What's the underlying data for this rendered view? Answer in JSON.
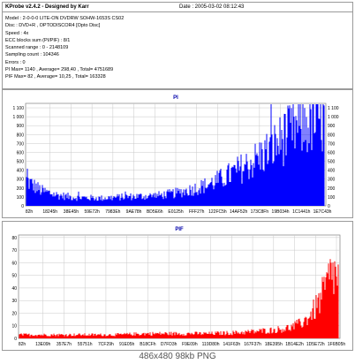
{
  "header": {
    "title": "KProbe v2.4.2 - Designed by Karr",
    "date": "Date : 2005-03-02 08:12:43",
    "info_lines": [
      "Model : 2-0-0-0 LITE-ON DVDRW SOHW-1653S CS02",
      "Disc : DVD+R , OPTODISCOR4 [Opto Disc]",
      "Speed : 4x",
      "ECC blocks sum (PI/PIF) : 8/1",
      "Scanned range : 0 - 2148109",
      "Sampling count : 104346",
      "Errors : 0",
      "PI Max= 1140 , Average= 298,40 , Total= 4751689",
      "PIF Max= 82 , Average= 10,25 , Total= 163328"
    ]
  },
  "caption": "486x480 98kb PNG",
  "colors": {
    "pi": "#0000ff",
    "pif": "#ff0000",
    "grid": "#c8c8c8",
    "frame": "#9a9a9a"
  },
  "chart_data": [
    {
      "type": "bar",
      "title": "PI",
      "ylim": [
        0,
        1150
      ],
      "yticks": [
        "1 100",
        "1 000",
        "900",
        "800",
        "700",
        "600",
        "500",
        "400",
        "300",
        "200",
        "100",
        "0"
      ],
      "ytick_values": [
        1100,
        1000,
        900,
        800,
        700,
        600,
        500,
        400,
        300,
        200,
        100,
        0
      ],
      "xtick_labels": [
        "82h",
        "18245h",
        "38E45h",
        "59E72h",
        "7983Eh",
        "9AE78h",
        "BD5E6h",
        "E0125h",
        "FFF27h",
        "122FC5h",
        "14AF52h",
        "173C8Fh",
        "19B034h",
        "1C1441h",
        "1E7C43h"
      ],
      "profile_x": [
        0,
        0.02,
        0.05,
        0.1,
        0.15,
        0.2,
        0.25,
        0.3,
        0.35,
        0.4,
        0.45,
        0.5,
        0.55,
        0.6,
        0.65,
        0.7,
        0.75,
        0.8,
        0.85,
        0.9,
        0.95,
        1.0
      ],
      "profile_y": [
        300,
        250,
        180,
        130,
        105,
        95,
        90,
        100,
        110,
        115,
        125,
        150,
        190,
        240,
        310,
        400,
        500,
        620,
        760,
        900,
        980,
        1000
      ],
      "max": 1140,
      "grid": true
    },
    {
      "type": "bar",
      "title": "PIF",
      "ylim": [
        0,
        82
      ],
      "yticks": [
        "80",
        "70",
        "60",
        "50",
        "40",
        "30",
        "20",
        "10",
        "0"
      ],
      "ytick_values": [
        80,
        70,
        60,
        50,
        40,
        30,
        20,
        10,
        0
      ],
      "xtick_labels": [
        "82h",
        "13E09h",
        "357E7h",
        "55751h",
        "7CF29h",
        "91E05h",
        "B18CFh",
        "D7FD3h",
        "F9E09h",
        "119D80h",
        "141F63h",
        "167F37h",
        "18E395h",
        "1B14E2h",
        "1D5E72h",
        "1F6B05h"
      ],
      "profile_x": [
        0,
        0.1,
        0.2,
        0.3,
        0.4,
        0.5,
        0.6,
        0.7,
        0.75,
        0.8,
        0.85,
        0.88,
        0.9,
        0.92,
        0.94,
        0.96,
        0.98,
        1.0
      ],
      "profile_y": [
        3,
        3,
        3,
        3,
        4,
        4,
        4,
        5,
        6,
        7,
        9,
        12,
        16,
        22,
        30,
        42,
        55,
        50
      ],
      "max": 82,
      "grid": true
    }
  ]
}
